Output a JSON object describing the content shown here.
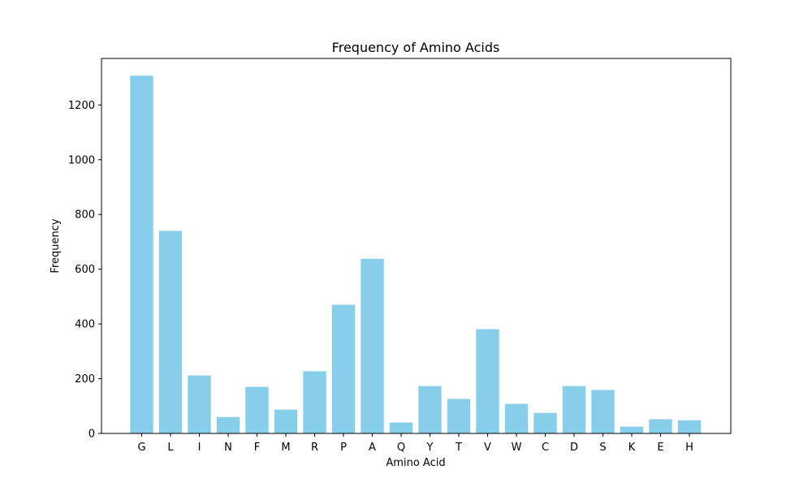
{
  "chart_data": {
    "type": "bar",
    "title": "Frequency of Amino Acids",
    "xlabel": "Amino Acid",
    "ylabel": "Frequency",
    "categories": [
      "G",
      "L",
      "I",
      "N",
      "F",
      "M",
      "R",
      "P",
      "A",
      "Q",
      "Y",
      "T",
      "V",
      "W",
      "C",
      "D",
      "S",
      "K",
      "E",
      "H"
    ],
    "values": [
      1307,
      740,
      212,
      60,
      170,
      87,
      227,
      470,
      638,
      40,
      173,
      126,
      381,
      108,
      75,
      173,
      159,
      25,
      52,
      48
    ],
    "ylim": [
      0,
      1370
    ],
    "yticks": [
      0,
      200,
      400,
      600,
      800,
      1000,
      1200
    ],
    "bar_color": "#87ceeb",
    "grid": false,
    "legend": "none"
  }
}
